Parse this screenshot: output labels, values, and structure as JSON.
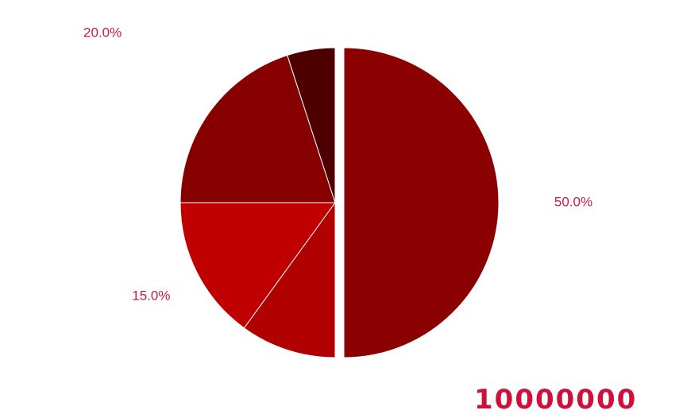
{
  "chart_data": {
    "type": "pie",
    "start_angle_deg": 0,
    "direction": "clockwise",
    "slices": [
      {
        "label": "50.0%",
        "value": 50.0,
        "color": "#8b0000",
        "exploded": true
      },
      {
        "label": "10.0%",
        "value": 10.0,
        "color": "#b00000",
        "exploded": false
      },
      {
        "label": "15.0%",
        "value": 15.0,
        "color": "#c00000",
        "exploded": false
      },
      {
        "label": "20.0%",
        "value": 20.0,
        "color": "#870000",
        "exploded": false
      },
      {
        "label": "5.0%",
        "value": 5.0,
        "color": "#4d0000",
        "exploded": false
      }
    ],
    "label_color": "#cc1a3f",
    "slice_edge_color": "#ffffff"
  },
  "summary": {
    "total_label": "10000000",
    "color": "#d0103a"
  }
}
